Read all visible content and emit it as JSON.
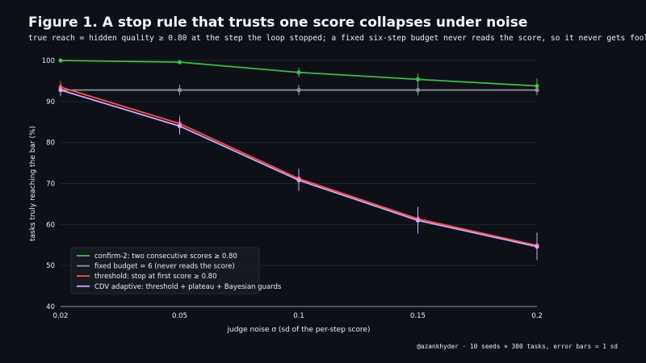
{
  "title": "Figure 1. A stop rule that trusts one score collapses under noise",
  "subtitle": "true reach = hidden quality ≥ 0.80 at the step the loop stopped; a fixed six-step budget never reads the score, so it never gets fooled",
  "footer": "@azankhyder · 10 seeds × 300 tasks, error bars = 1 sd",
  "chart_data": {
    "type": "line",
    "xlabel": "judge noise σ (sd of the per-step score)",
    "ylabel": "tasks truly reaching the bar (%)",
    "x": [
      0.02,
      0.05,
      0.1,
      0.15,
      0.2
    ],
    "x_tick_labels": [
      "0.02",
      "0.05",
      "0.1",
      "0.15",
      "0.2"
    ],
    "xlim": [
      0.02,
      0.2
    ],
    "ylim": [
      40,
      100
    ],
    "y_ticks": [
      40,
      50,
      60,
      70,
      80,
      90,
      100
    ],
    "grid": "horizontal",
    "legend_position": "lower-left",
    "series": [
      {
        "name": "confirm-2: two consecutive scores ≥ 0.80",
        "color": "#3fb950",
        "values": [
          100,
          99.6,
          97.1,
          95.4,
          93.8
        ],
        "errors": [
          0.1,
          0.3,
          1.2,
          1.4,
          1.8
        ]
      },
      {
        "name": "fixed budget = 6 (never reads the score)",
        "color": "#8b949e",
        "values": [
          92.8,
          92.8,
          92.8,
          92.8,
          92.8
        ],
        "errors": [
          1.3,
          1.3,
          1.3,
          1.3,
          1.3
        ]
      },
      {
        "name": "threshold: stop at first score ≥ 0.80",
        "color": "#f85149",
        "values": [
          93.5,
          84.6,
          71.2,
          61.4,
          54.9
        ],
        "errors": [
          1.5,
          2.0,
          2.5,
          3.0,
          3.2
        ]
      },
      {
        "name": "CDV adaptive: threshold + plateau + Bayesian guards",
        "color": "#d2a8ff",
        "values": [
          92.8,
          84.0,
          70.8,
          61.0,
          54.6
        ],
        "errors": [
          1.5,
          2.0,
          2.6,
          3.2,
          3.3
        ]
      }
    ]
  }
}
